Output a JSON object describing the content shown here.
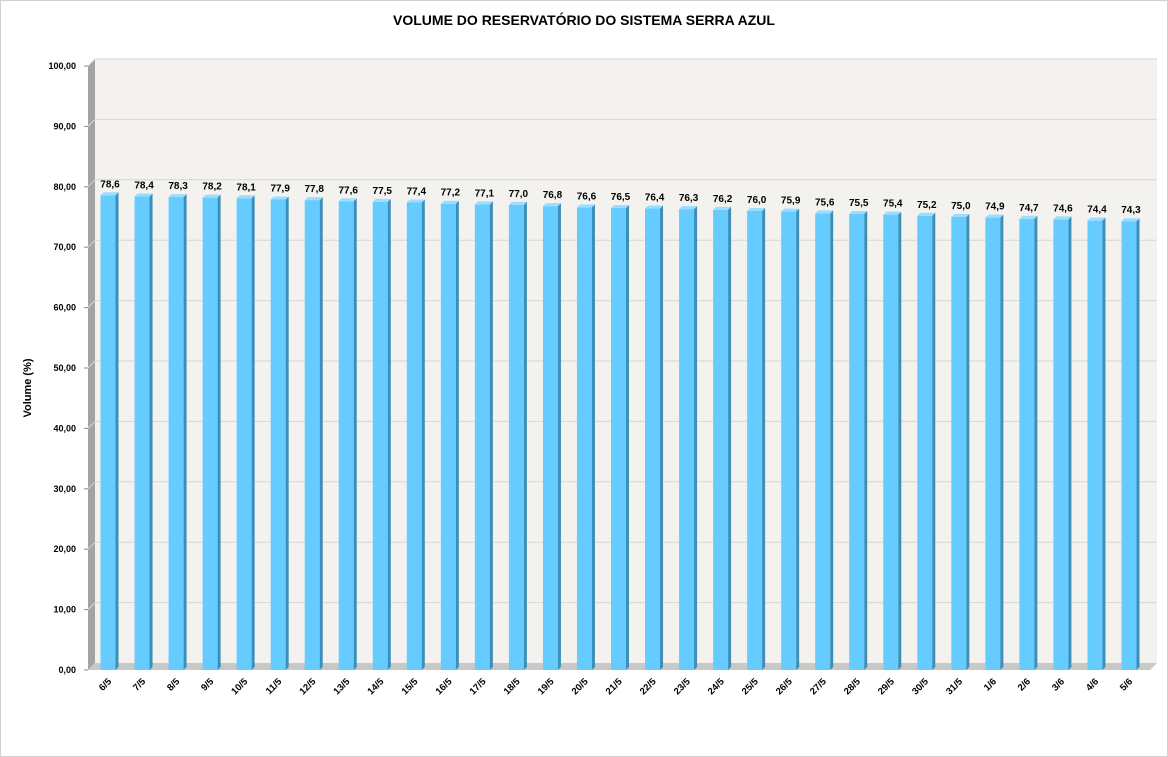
{
  "colors": {
    "bar_front": "#66CCFF",
    "bar_side": "#3C8FB8",
    "bar_top": "#9BDDFF",
    "wall": "#F3F2EE",
    "floor": "#C8C8C8",
    "left_wall": "#A3A3A3",
    "grid": "#D6D6D6"
  },
  "chart_data": {
    "type": "bar",
    "title": "VOLUME DO RESERVATÓRIO DO SISTEMA SERRA AZUL",
    "xlabel": "",
    "ylabel": "Volume (%)",
    "ylim": [
      0,
      100
    ],
    "y_ticks": [
      "0,00",
      "10,00",
      "20,00",
      "30,00",
      "40,00",
      "50,00",
      "60,00",
      "70,00",
      "80,00",
      "90,00",
      "100,00"
    ],
    "grid": true,
    "legend": "none",
    "categories": [
      "6/5",
      "7/5",
      "8/5",
      "9/5",
      "10/5",
      "11/5",
      "12/5",
      "13/5",
      "14/5",
      "15/5",
      "16/5",
      "17/5",
      "18/5",
      "19/5",
      "20/5",
      "21/5",
      "22/5",
      "23/5",
      "24/5",
      "25/5",
      "26/5",
      "27/5",
      "28/5",
      "29/5",
      "30/5",
      "31/5",
      "1/6",
      "2/6",
      "3/6",
      "4/6",
      "5/6"
    ],
    "values": [
      78.6,
      78.4,
      78.3,
      78.2,
      78.1,
      77.9,
      77.8,
      77.6,
      77.5,
      77.4,
      77.2,
      77.1,
      77.0,
      76.8,
      76.6,
      76.5,
      76.4,
      76.3,
      76.2,
      76.0,
      75.9,
      75.6,
      75.5,
      75.4,
      75.2,
      75.0,
      74.9,
      74.7,
      74.6,
      74.4,
      74.3
    ],
    "data_labels": [
      "78,6",
      "78,4",
      "78,3",
      "78,2",
      "78,1",
      "77,9",
      "77,8",
      "77,6",
      "77,5",
      "77,4",
      "77,2",
      "77,1",
      "77,0",
      "76,8",
      "76,6",
      "76,5",
      "76,4",
      "76,3",
      "76,2",
      "76,0",
      "75,9",
      "75,6",
      "75,5",
      "75,4",
      "75,2",
      "75,0",
      "74,9",
      "74,7",
      "74,6",
      "74,4",
      "74,3"
    ]
  }
}
